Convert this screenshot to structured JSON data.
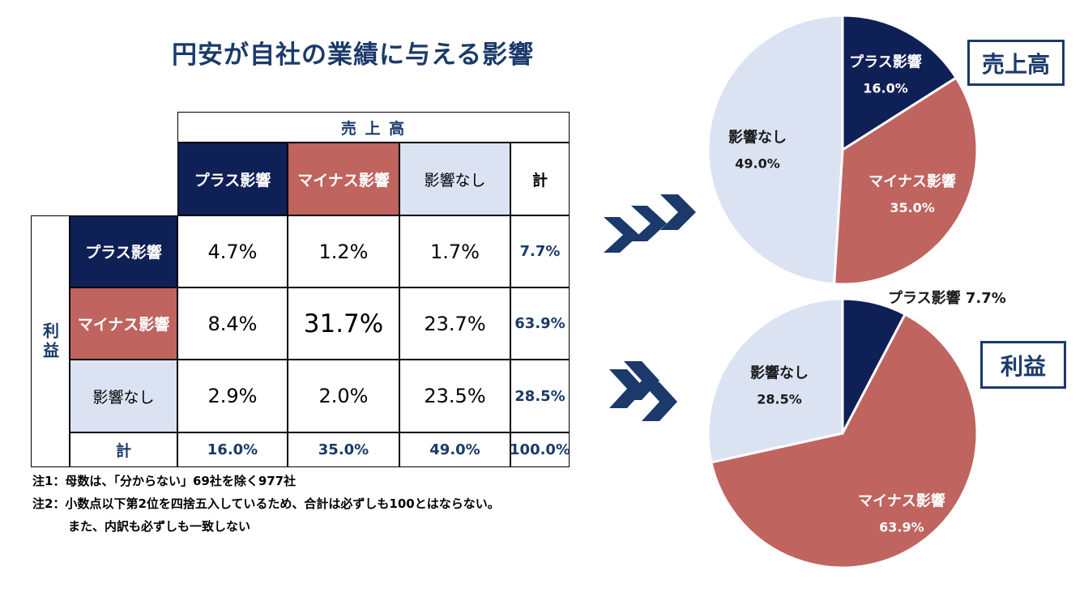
{
  "title": "円安が自社の業績に与える影響",
  "table": {
    "col_group": "売 上 高",
    "row_group": "利益",
    "col_headers": [
      "プラス影響",
      "マイナス影響",
      "影響なし",
      "計"
    ],
    "row_headers": [
      "プラス影響",
      "マイナス影響",
      "影響なし",
      "計"
    ],
    "rows": [
      [
        "4.7%",
        "1.2%",
        "1.7%",
        "7.7%"
      ],
      [
        "8.4%",
        "31.7%",
        "23.7%",
        "63.9%"
      ],
      [
        "2.9%",
        "2.0%",
        "23.5%",
        "28.5%"
      ],
      [
        "16.0%",
        "35.0%",
        "49.0%",
        "100.0%"
      ]
    ]
  },
  "notes": [
    "注1：母数は、「分からない」69社を除く977社",
    "注2：小数点以下第2位を四捨五入しているため、合計は必ずしも100とはならない。",
    "また、内訳も必ずしも一致しない"
  ],
  "colors": {
    "plus": "#0f2057",
    "minus": "#c0645f",
    "none": "#dbe3f3",
    "accent": "#1b3a6b"
  },
  "chart_data": [
    {
      "type": "pie",
      "title": "売上高",
      "categories": [
        "プラス影響",
        "マイナス影響",
        "影響なし"
      ],
      "values": [
        16.0,
        35.0,
        49.0
      ],
      "labels": [
        "16.0%",
        "35.0%",
        "49.0%"
      ]
    },
    {
      "type": "pie",
      "title": "利益",
      "categories": [
        "プラス影響",
        "マイナス影響",
        "影響なし"
      ],
      "values": [
        7.7,
        63.9,
        28.5
      ],
      "labels": [
        "7.7%",
        "63.9%",
        "28.5%"
      ]
    }
  ]
}
